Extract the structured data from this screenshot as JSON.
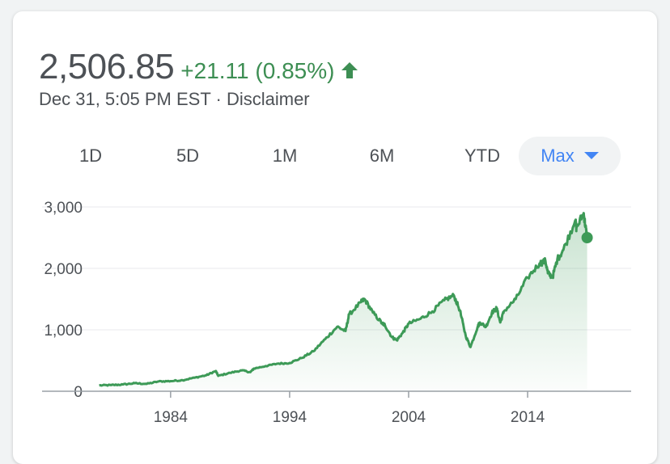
{
  "quote": {
    "price": "2,506.85",
    "change": "+21.11 (0.85%)",
    "direction_icon": "arrow-up-icon",
    "timestamp": "Dec 31, 5:05 PM EST",
    "separator": "·",
    "disclaimer": "Disclaimer"
  },
  "ranges": [
    {
      "label": "1D",
      "active": false
    },
    {
      "label": "5D",
      "active": false
    },
    {
      "label": "1M",
      "active": false
    },
    {
      "label": "6M",
      "active": false
    },
    {
      "label": "YTD",
      "active": false
    },
    {
      "label": "Max",
      "active": true
    }
  ],
  "colors": {
    "up": "#3d8e53",
    "line": "#3d9a57",
    "accent": "#4285f4",
    "text": "#4d5156",
    "grid": "#e8eaed"
  },
  "chart_data": {
    "type": "area",
    "ylim": [
      0,
      3000
    ],
    "y_ticks": [
      {
        "value": 0,
        "label": "0"
      },
      {
        "value": 1000,
        "label": "1,000"
      },
      {
        "value": 2000,
        "label": "2,000"
      },
      {
        "value": 3000,
        "label": "3,000"
      }
    ],
    "x_ticks": [
      {
        "value": 1984,
        "label": "1984"
      },
      {
        "value": 1994,
        "label": "1994"
      },
      {
        "value": 2004,
        "label": "2004"
      },
      {
        "value": 2014,
        "label": "2014"
      }
    ],
    "xlim": [
      1973.2,
      2022.7
    ],
    "grid": "horizontal",
    "last_point_marker": true,
    "series": [
      {
        "points": [
          [
            1978.0,
            95
          ],
          [
            1979.0,
            100
          ],
          [
            1980.0,
            110
          ],
          [
            1981.0,
            130
          ],
          [
            1982.0,
            120
          ],
          [
            1983.0,
            160
          ],
          [
            1984.0,
            165
          ],
          [
            1985.0,
            180
          ],
          [
            1986.0,
            220
          ],
          [
            1987.0,
            260
          ],
          [
            1987.8,
            330
          ],
          [
            1988.0,
            250
          ],
          [
            1989.0,
            300
          ],
          [
            1990.0,
            340
          ],
          [
            1990.7,
            310
          ],
          [
            1991.0,
            370
          ],
          [
            1992.0,
            410
          ],
          [
            1993.0,
            450
          ],
          [
            1994.0,
            460
          ],
          [
            1995.0,
            540
          ],
          [
            1996.0,
            650
          ],
          [
            1997.0,
            850
          ],
          [
            1998.0,
            1050
          ],
          [
            1998.7,
            980
          ],
          [
            1999.0,
            1250
          ],
          [
            2000.0,
            1450
          ],
          [
            2000.3,
            1500
          ],
          [
            2001.0,
            1280
          ],
          [
            2001.8,
            1100
          ],
          [
            2002.0,
            1080
          ],
          [
            2002.6,
            880
          ],
          [
            2003.0,
            830
          ],
          [
            2003.5,
            950
          ],
          [
            2004.0,
            1100
          ],
          [
            2005.0,
            1180
          ],
          [
            2006.0,
            1300
          ],
          [
            2007.0,
            1480
          ],
          [
            2007.8,
            1560
          ],
          [
            2008.3,
            1320
          ],
          [
            2008.8,
            900
          ],
          [
            2009.2,
            720
          ],
          [
            2009.8,
            1050
          ],
          [
            2010.0,
            1120
          ],
          [
            2010.5,
            1050
          ],
          [
            2011.0,
            1280
          ],
          [
            2011.4,
            1350
          ],
          [
            2011.7,
            1120
          ],
          [
            2012.0,
            1300
          ],
          [
            2013.0,
            1500
          ],
          [
            2014.0,
            1850
          ],
          [
            2015.0,
            2080
          ],
          [
            2015.5,
            2120
          ],
          [
            2015.7,
            1920
          ],
          [
            2016.1,
            1860
          ],
          [
            2016.5,
            2150
          ],
          [
            2017.0,
            2300
          ],
          [
            2018.0,
            2780
          ],
          [
            2018.1,
            2650
          ],
          [
            2018.7,
            2900
          ],
          [
            2018.85,
            2700
          ],
          [
            2019.0,
            2500
          ]
        ]
      }
    ]
  }
}
